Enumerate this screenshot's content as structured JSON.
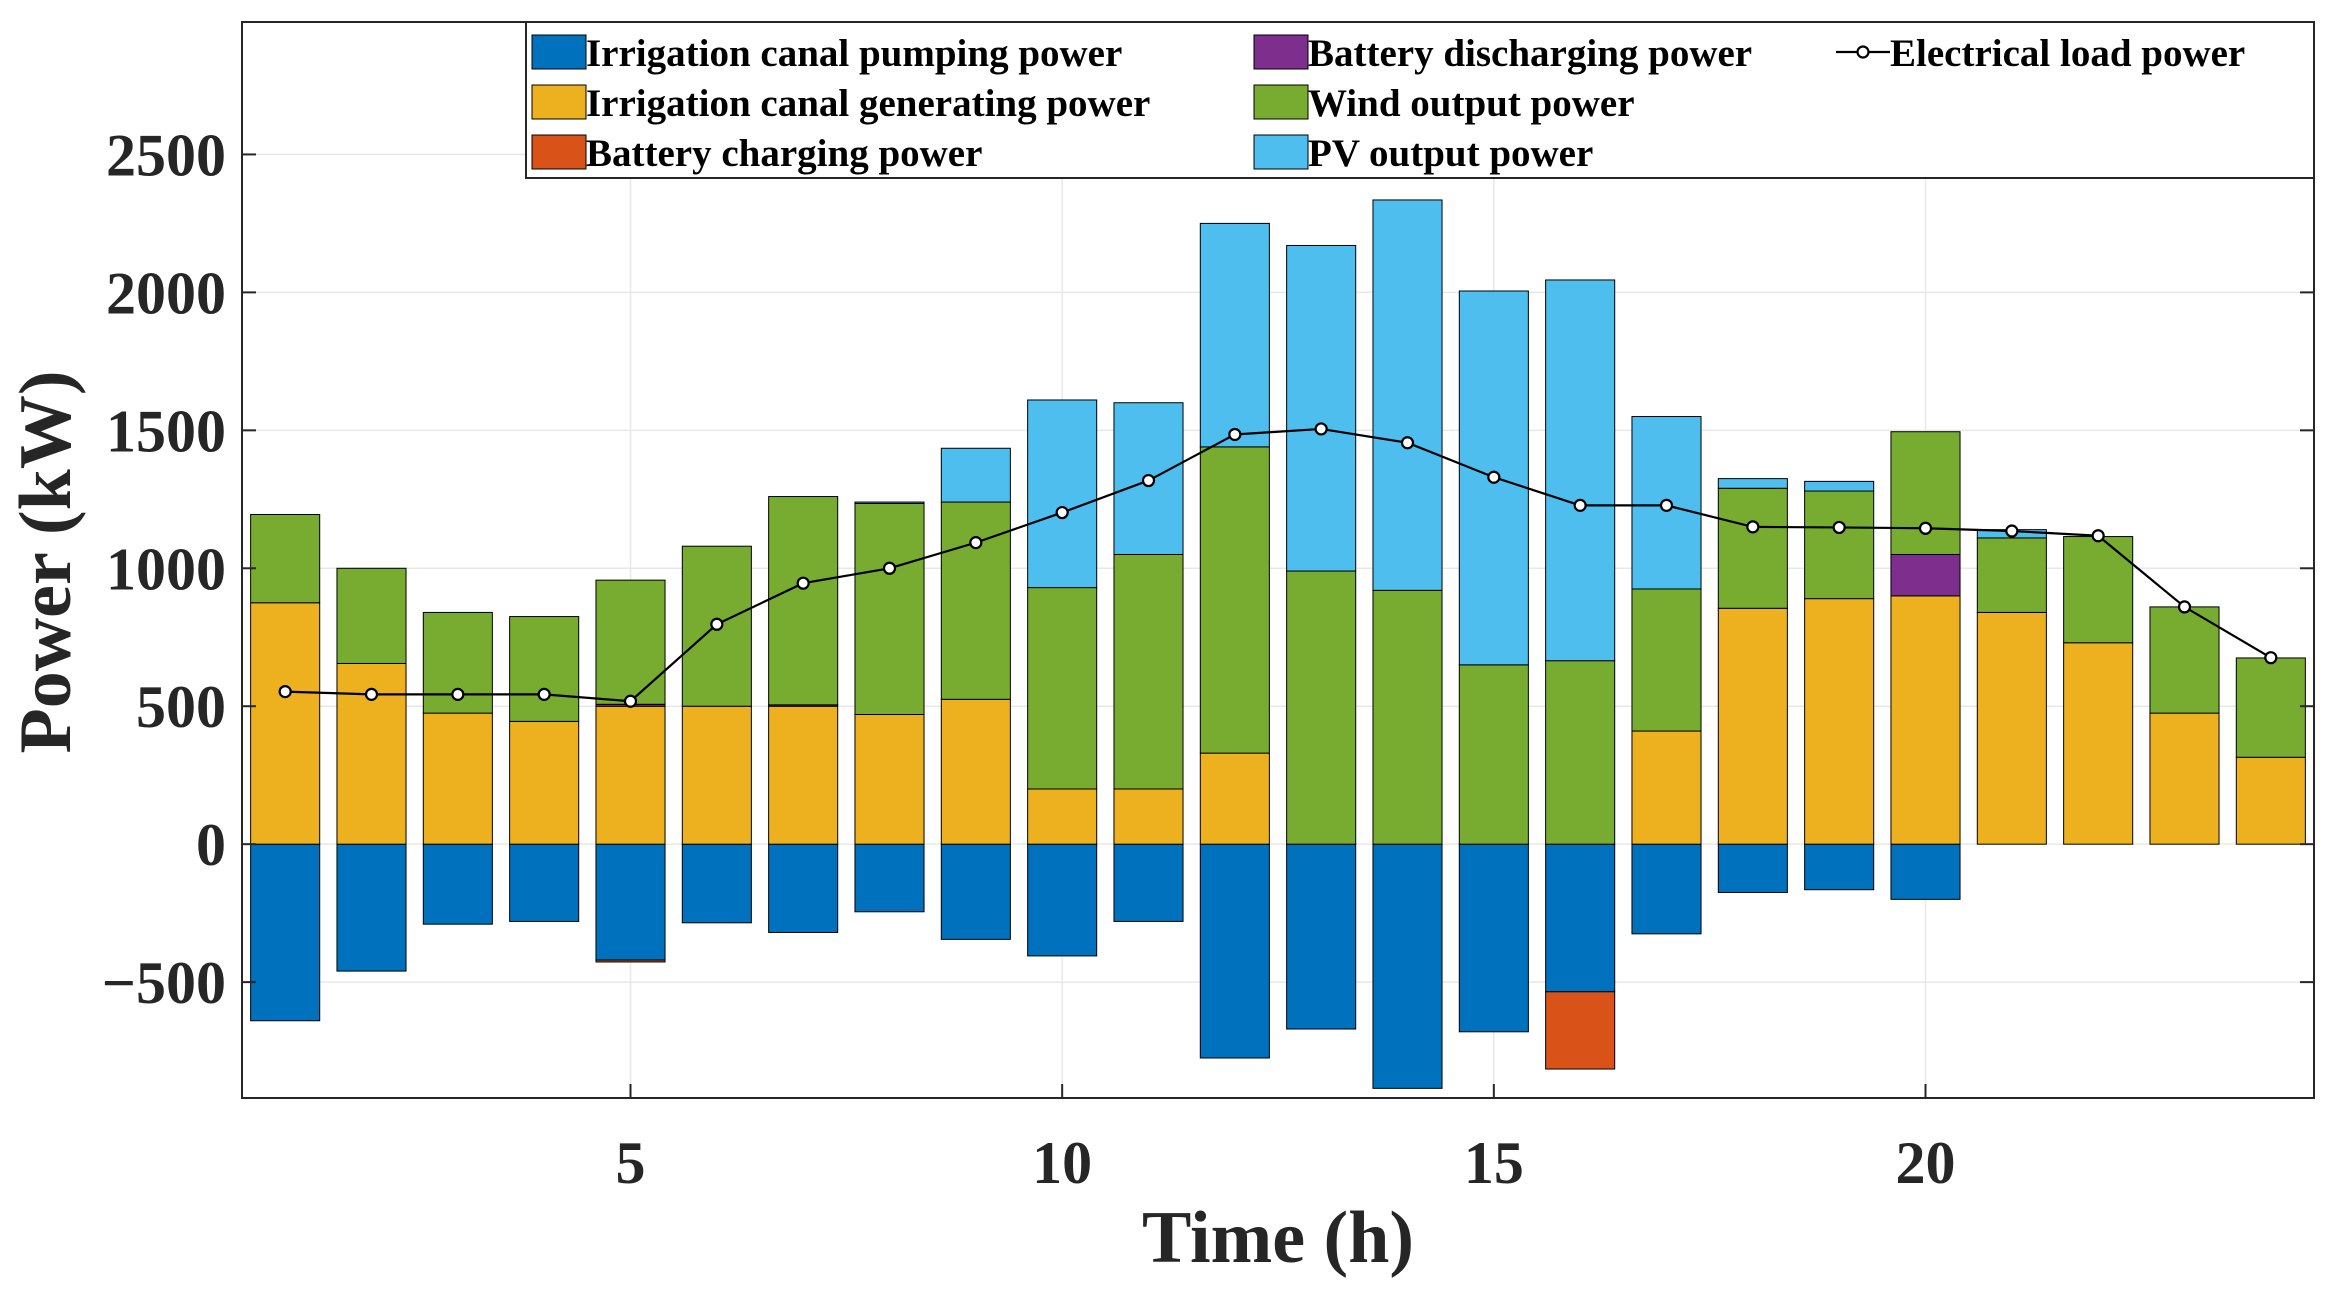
{
  "chart_data": {
    "type": "bar",
    "stacked": true,
    "title": "",
    "xlabel": "Time (h)",
    "ylabel": "Power (kW)",
    "xlim": [
      0.5,
      24.5
    ],
    "ylim": [
      -920,
      2980
    ],
    "xticks": [
      5,
      10,
      15,
      20
    ],
    "yticks": [
      -500,
      0,
      500,
      1000,
      1500,
      2000,
      2500
    ],
    "grid": true,
    "legend_position": "top-right",
    "x": [
      1,
      2,
      3,
      4,
      5,
      6,
      7,
      8,
      9,
      10,
      11,
      12,
      13,
      14,
      15,
      16,
      17,
      18,
      19,
      20,
      21,
      22,
      23,
      24
    ],
    "series": [
      {
        "key": "pump",
        "name": "Irrigation canal pumping power",
        "color": "#0072BD",
        "values": [
          -640,
          -460,
          -290,
          -280,
          -420,
          -285,
          -320,
          -245,
          -345,
          -405,
          -280,
          -775,
          -670,
          -885,
          -680,
          -535,
          -325,
          -175,
          -165,
          -200,
          0,
          0,
          0,
          0
        ]
      },
      {
        "key": "gen",
        "name": "Irrigation canal generating power",
        "color": "#EDB120",
        "values": [
          875,
          655,
          475,
          445,
          500,
          500,
          500,
          470,
          525,
          200,
          200,
          330,
          0,
          0,
          0,
          0,
          410,
          855,
          890,
          900,
          840,
          730,
          475,
          315
        ]
      },
      {
        "key": "charge",
        "name": "Battery charging power",
        "color": "#D95319",
        "values": [
          0,
          0,
          0,
          0,
          -7,
          0,
          0,
          0,
          0,
          0,
          0,
          0,
          0,
          0,
          0,
          -280,
          0,
          0,
          0,
          0,
          0,
          0,
          0,
          0
        ]
      },
      {
        "key": "discharge",
        "name": "Battery discharging power",
        "color": "#7E2F8E",
        "values": [
          0,
          0,
          0,
          0,
          7,
          0,
          5,
          0,
          0,
          0,
          0,
          0,
          0,
          0,
          0,
          0,
          0,
          0,
          0,
          150,
          0,
          0,
          0,
          0
        ]
      },
      {
        "key": "wind",
        "name": "Wind output power",
        "color": "#77AC30",
        "values": [
          320,
          345,
          365,
          380,
          450,
          580,
          755,
          765,
          715,
          730,
          850,
          1110,
          990,
          920,
          650,
          665,
          515,
          435,
          390,
          445,
          270,
          385,
          385,
          360
        ]
      },
      {
        "key": "pv",
        "name": "PV output power",
        "color": "#4DBEEE",
        "values": [
          0,
          0,
          0,
          0,
          0,
          0,
          0,
          5,
          195,
          680,
          550,
          810,
          1180,
          1415,
          1355,
          1380,
          625,
          35,
          35,
          0,
          30,
          0,
          0,
          0
        ]
      }
    ],
    "line_series": {
      "name": "Electrical load power",
      "color": "#000000",
      "values": [
        553,
        543,
        543,
        543,
        518,
        797,
        946,
        1000,
        1093,
        1202,
        1318,
        1485,
        1505,
        1455,
        1330,
        1228,
        1228,
        1150,
        1148,
        1145,
        1135,
        1118,
        860,
        676
      ]
    }
  }
}
